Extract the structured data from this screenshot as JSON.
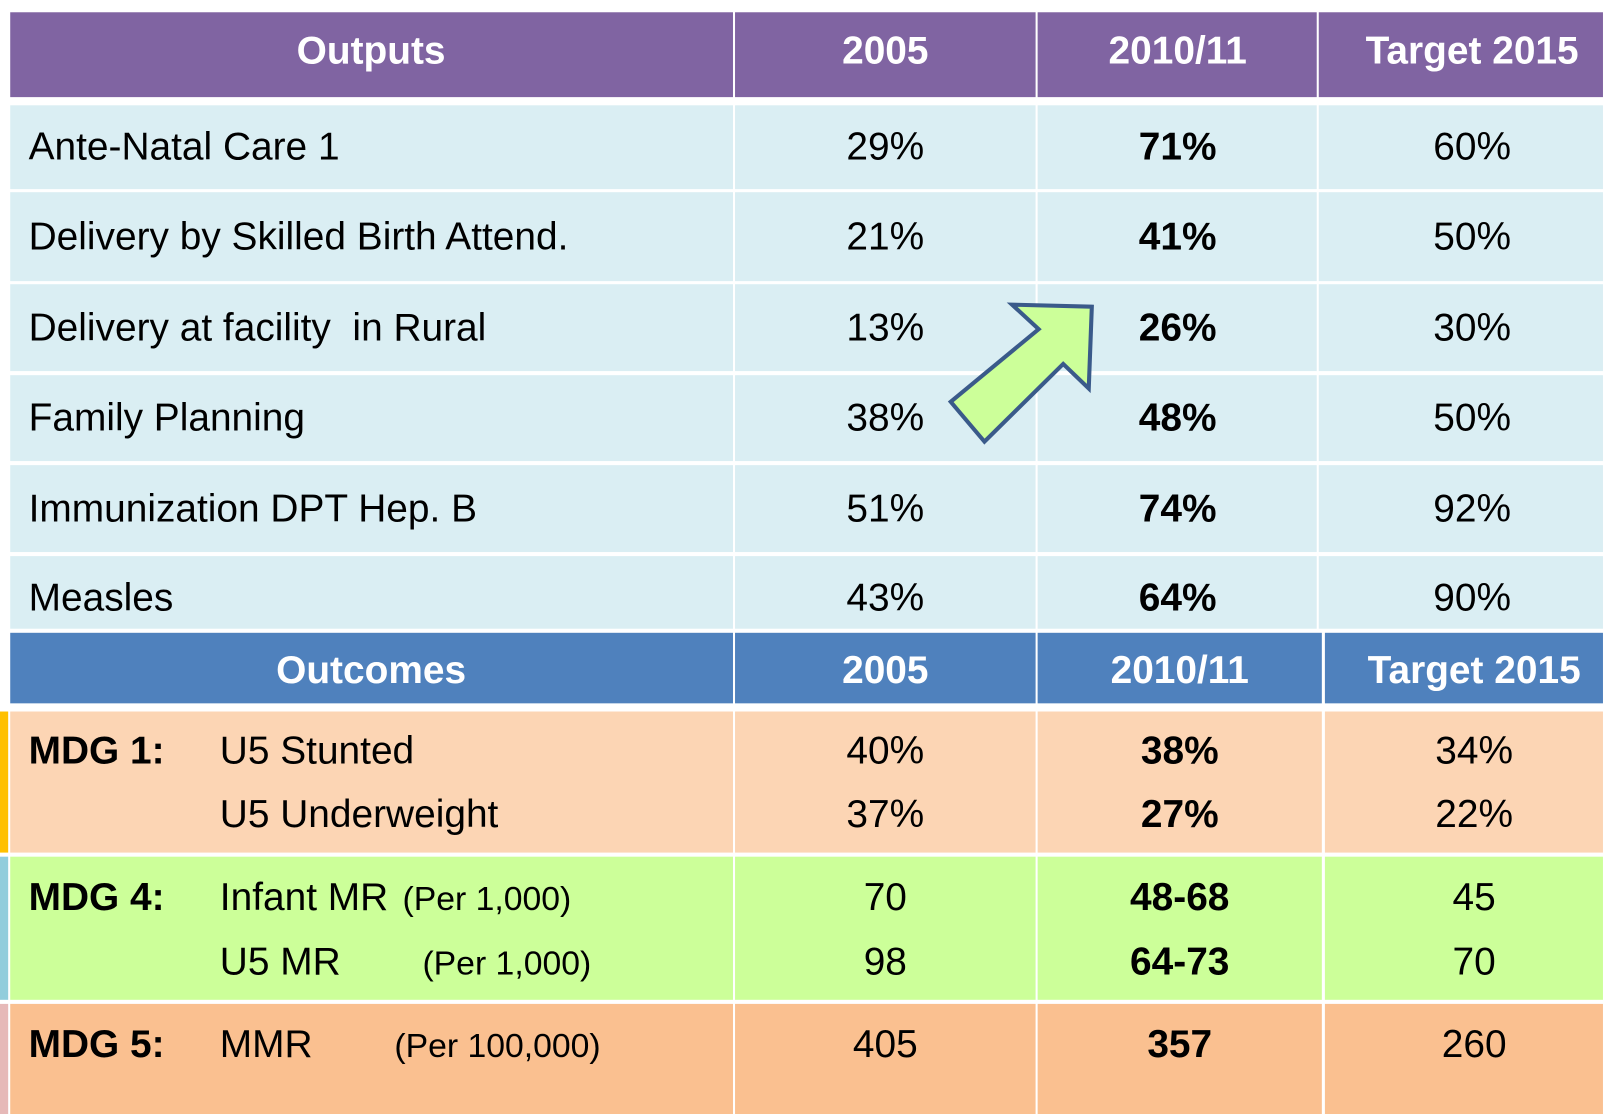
{
  "outputs": {
    "header": [
      "Outputs",
      "2005",
      "2010/11",
      "Target 2015"
    ],
    "rows": [
      [
        "Ante-Natal Care 1",
        "29%",
        "71%",
        "60%"
      ],
      [
        "Delivery by Skilled Birth Attend.",
        "21%",
        "41%",
        "50%"
      ],
      [
        "Delivery at facility  in Rural",
        "13%",
        "26%",
        "30%"
      ],
      [
        "Family Planning",
        "38%",
        "48%",
        "50%"
      ],
      [
        "Immunization DPT Hep. B",
        "51%",
        "74%",
        "92%"
      ],
      [
        "Measles",
        "43%",
        "64%",
        "90%"
      ]
    ]
  },
  "outcomes": {
    "header": [
      "Outcomes",
      "2005",
      "2010/11",
      "Target 2015"
    ],
    "groups": [
      {
        "goal": "MDG 1:",
        "lines": [
          {
            "label": "U5 Stunted",
            "values": [
              "40%",
              "38%",
              "34%"
            ]
          },
          {
            "label": "U5 Underweight",
            "values": [
              "37%",
              "27%",
              "22%"
            ]
          }
        ]
      },
      {
        "goal": "MDG 4:",
        "lines": [
          {
            "label": "Infant MR",
            "unit": "(Per 1,000)",
            "values": [
              "70",
              "48-68",
              "45"
            ]
          },
          {
            "label": "U5 MR",
            "unit": "(Per 1,000)",
            "values": [
              "98",
              "64-73",
              "70"
            ]
          }
        ]
      },
      {
        "goal": "MDG 5:",
        "lines": [
          {
            "label": "MMR",
            "unit": "(Per 100,000)",
            "values": [
              "405",
              "357",
              "260"
            ]
          }
        ]
      }
    ]
  }
}
